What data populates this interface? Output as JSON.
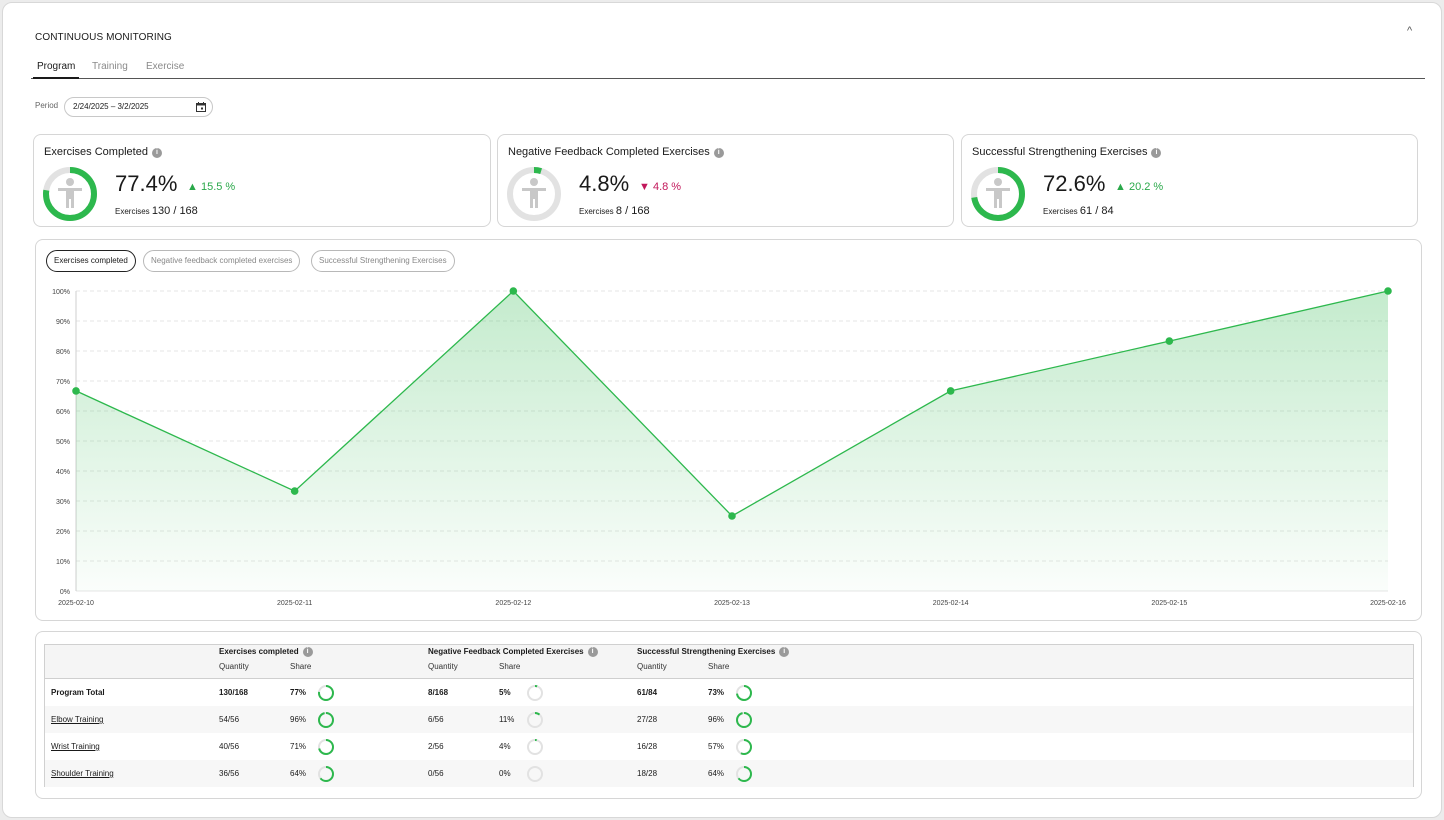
{
  "header": {
    "title": "CONTINUOUS MONITORING",
    "collapse_glyph": "^"
  },
  "tabs": [
    {
      "label": "Program",
      "active": true
    },
    {
      "label": "Training",
      "active": false
    },
    {
      "label": "Exercise",
      "active": false
    }
  ],
  "period": {
    "label": "Period",
    "value": "2/24/2025 – 3/2/2025"
  },
  "kpis": [
    {
      "title": "Exercises Completed",
      "value": "77.4%",
      "delta": "15.5 %",
      "direction": "up",
      "sub_label": "Exercises",
      "sub_value": "130 / 168",
      "fraction": 0.774
    },
    {
      "title": "Negative Feedback Completed Exercises",
      "value": "4.8%",
      "delta": "4.8 %",
      "direction": "down",
      "sub_label": "Exercises",
      "sub_value": "8 / 168",
      "fraction": 0.048
    },
    {
      "title": "Successful Strengthening Exercises",
      "value": "72.6%",
      "delta": "20.2 %",
      "direction": "up",
      "sub_label": "Exercises",
      "sub_value": "61 / 84",
      "fraction": 0.726
    }
  ],
  "chart_toggles": [
    {
      "label": "Exercises completed",
      "active": true
    },
    {
      "label": "Negative feedback completed exercises",
      "active": false
    },
    {
      "label": "Successful Strengthening Exercises",
      "active": false
    }
  ],
  "chart_data": {
    "type": "area",
    "x": [
      "2025-02-10",
      "2025-02-11",
      "2025-02-12",
      "2025-02-13",
      "2025-02-14",
      "2025-02-15",
      "2025-02-16"
    ],
    "series": [
      {
        "values": [
          66.7,
          33.3,
          100,
          25,
          66.7,
          83.3,
          100
        ]
      }
    ],
    "yticks": [
      "0%",
      "10%",
      "20%",
      "30%",
      "40%",
      "50%",
      "60%",
      "70%",
      "80%",
      "90%",
      "100%"
    ],
    "ylim": [
      0,
      100
    ],
    "grid": true,
    "color": "#2db84d"
  },
  "table": {
    "groups": [
      {
        "title": "Exercises completed"
      },
      {
        "title": "Negative Feedback Completed Exercises"
      },
      {
        "title": "Successful Strengthening Exercises"
      }
    ],
    "sub_quantity": "Quantity",
    "sub_share": "Share",
    "rows": [
      {
        "name": "Program Total",
        "bold": true,
        "link": false,
        "cells": [
          {
            "q": "130/168",
            "s": "77%",
            "f": 0.77
          },
          {
            "q": "8/168",
            "s": "5%",
            "f": 0.05
          },
          {
            "q": "61/84",
            "s": "73%",
            "f": 0.73
          }
        ]
      },
      {
        "name": "Elbow Training",
        "bold": false,
        "link": true,
        "cells": [
          {
            "q": "54/56",
            "s": "96%",
            "f": 0.96
          },
          {
            "q": "6/56",
            "s": "11%",
            "f": 0.11
          },
          {
            "q": "27/28",
            "s": "96%",
            "f": 0.96
          }
        ]
      },
      {
        "name": "Wrist Training",
        "bold": false,
        "link": true,
        "cells": [
          {
            "q": "40/56",
            "s": "71%",
            "f": 0.71
          },
          {
            "q": "2/56",
            "s": "4%",
            "f": 0.04
          },
          {
            "q": "16/28",
            "s": "57%",
            "f": 0.57
          }
        ]
      },
      {
        "name": "Shoulder Training",
        "bold": false,
        "link": true,
        "cells": [
          {
            "q": "36/56",
            "s": "64%",
            "f": 0.64
          },
          {
            "q": "0/56",
            "s": "0%",
            "f": 0
          },
          {
            "q": "18/28",
            "s": "64%",
            "f": 0.64
          }
        ]
      }
    ]
  },
  "colors": {
    "accent": "#2db84d",
    "negative": "#c2185b",
    "ring_track": "#e2e2e2"
  }
}
